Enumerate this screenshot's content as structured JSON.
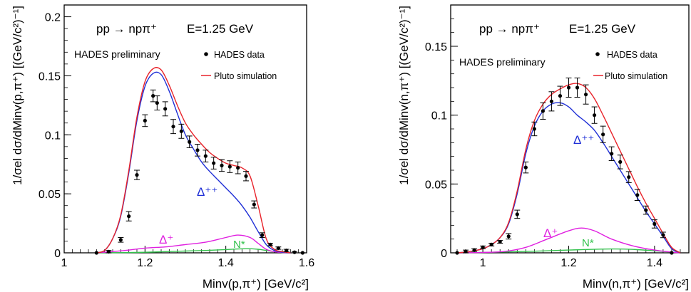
{
  "chart_data": [
    {
      "type": "line",
      "reaction": "pp → npπ⁺",
      "energy_label": "E=1.25 GeV",
      "preliminary_label": "HADES preliminary",
      "legend": {
        "data": "HADES data",
        "sim": "Pluto simulation",
        "placement": "top-right"
      },
      "xlabel": "Minv(p,π⁺) [GeV/c²]",
      "ylabel": "1/σel dσ/dMinv(p,π⁺) [(GeV/c²)⁻¹]",
      "xlim": [
        1.0,
        1.6
      ],
      "ylim": [
        0,
        0.21
      ],
      "xticks": [
        "1",
        "1.2",
        "1.4",
        "1.6"
      ],
      "yticks": [
        "0",
        "0.05",
        "0.1",
        "0.15",
        "0.2"
      ],
      "xtick_values": [
        1.0,
        1.2,
        1.4,
        1.6
      ],
      "ytick_values": [
        0,
        0.05,
        0.1,
        0.15,
        0.2
      ],
      "labels": {
        "delta_pp": "Δ⁺⁺",
        "delta_p": "Δ⁺",
        "nstar": "N*"
      },
      "colors": {
        "total": "#e8232a",
        "delta_pp": "#1f2fd6",
        "delta_p": "#e020e0",
        "nstar": "#33c24d",
        "data": "#000000"
      },
      "data_points": {
        "x": [
          1.08,
          1.11,
          1.14,
          1.16,
          1.18,
          1.2,
          1.22,
          1.23,
          1.25,
          1.27,
          1.29,
          1.31,
          1.33,
          1.35,
          1.37,
          1.39,
          1.41,
          1.43,
          1.45,
          1.47,
          1.49,
          1.51,
          1.53,
          1.55,
          1.57,
          1.59
        ],
        "y": [
          0.0,
          0.001,
          0.011,
          0.031,
          0.066,
          0.112,
          0.133,
          0.127,
          0.122,
          0.107,
          0.103,
          0.094,
          0.087,
          0.082,
          0.076,
          0.074,
          0.073,
          0.072,
          0.065,
          0.041,
          0.015,
          0.007,
          0.004,
          0.002,
          0.0005,
          0.0
        ],
        "err": [
          0.0,
          0.001,
          0.002,
          0.004,
          0.004,
          0.005,
          0.005,
          0.006,
          0.006,
          0.006,
          0.006,
          0.005,
          0.005,
          0.005,
          0.005,
          0.005,
          0.005,
          0.005,
          0.004,
          0.003,
          0.002,
          0.001,
          0.001,
          0.001,
          0.0005,
          0.0
        ]
      },
      "series": [
        {
          "name": "Pluto simulation",
          "key": "total",
          "x": [
            1.08,
            1.1,
            1.12,
            1.14,
            1.16,
            1.18,
            1.2,
            1.22,
            1.24,
            1.26,
            1.28,
            1.3,
            1.32,
            1.34,
            1.36,
            1.38,
            1.4,
            1.42,
            1.44,
            1.46,
            1.48,
            1.5,
            1.52,
            1.54,
            1.56
          ],
          "y": [
            0,
            0.002,
            0.012,
            0.032,
            0.07,
            0.115,
            0.145,
            0.156,
            0.155,
            0.142,
            0.125,
            0.11,
            0.1,
            0.092,
            0.085,
            0.08,
            0.076,
            0.074,
            0.072,
            0.065,
            0.04,
            0.012,
            0.003,
            0.001,
            0
          ]
        },
        {
          "key": "delta_pp",
          "x": [
            1.08,
            1.1,
            1.12,
            1.14,
            1.16,
            1.18,
            1.2,
            1.22,
            1.24,
            1.26,
            1.28,
            1.3,
            1.32,
            1.34,
            1.36,
            1.38,
            1.4,
            1.42,
            1.44,
            1.46,
            1.48,
            1.5,
            1.52,
            1.54,
            1.56
          ],
          "y": [
            0,
            0.002,
            0.012,
            0.031,
            0.068,
            0.112,
            0.141,
            0.152,
            0.151,
            0.137,
            0.118,
            0.1,
            0.088,
            0.077,
            0.069,
            0.062,
            0.055,
            0.048,
            0.04,
            0.03,
            0.018,
            0.007,
            0.002,
            0.0005,
            0
          ]
        },
        {
          "key": "delta_p",
          "x": [
            1.08,
            1.1,
            1.15,
            1.2,
            1.25,
            1.3,
            1.35,
            1.4,
            1.43,
            1.46,
            1.48,
            1.5,
            1.52,
            1.54,
            1.56
          ],
          "y": [
            0,
            0.0005,
            0.002,
            0.004,
            0.005,
            0.007,
            0.009,
            0.013,
            0.015,
            0.013,
            0.008,
            0.003,
            0.001,
            0.0003,
            0
          ]
        },
        {
          "key": "nstar",
          "x": [
            1.08,
            1.15,
            1.2,
            1.25,
            1.3,
            1.35,
            1.4,
            1.45,
            1.48,
            1.5,
            1.52,
            1.54,
            1.56
          ],
          "y": [
            0,
            0.0002,
            0.0005,
            0.001,
            0.0015,
            0.002,
            0.0028,
            0.0035,
            0.003,
            0.002,
            0.001,
            0.0003,
            0
          ]
        }
      ]
    },
    {
      "type": "line",
      "reaction": "pp → npπ⁺",
      "energy_label": "E=1.25 GeV",
      "preliminary_label": "HADES preliminary",
      "legend": {
        "data": "HADES data",
        "sim": "Pluto simulation",
        "placement": "top-right"
      },
      "xlabel": "Minv(n,π⁺) [GeV/c²]",
      "ylabel": "1/σel dσ/dMinv(n,π⁺) [(GeV/c²)⁻¹]",
      "xlim": [
        0.925,
        1.48
      ],
      "ylim": [
        0,
        0.18
      ],
      "xticks": [
        "1",
        "1.2",
        "1.4"
      ],
      "yticks": [
        "0",
        "0.05",
        "0.1",
        "0.15"
      ],
      "xtick_values": [
        1.0,
        1.2,
        1.4
      ],
      "ytick_values": [
        0,
        0.05,
        0.1,
        0.15
      ],
      "labels": {
        "delta_pp": "Δ⁺⁺",
        "delta_p": "Δ⁺",
        "nstar": "N*"
      },
      "colors": {
        "total": "#e8232a",
        "delta_pp": "#1f2fd6",
        "delta_p": "#e020e0",
        "nstar": "#33c24d",
        "data": "#000000"
      },
      "data_points": {
        "x": [
          0.94,
          0.96,
          0.98,
          1.0,
          1.02,
          1.04,
          1.06,
          1.08,
          1.1,
          1.12,
          1.14,
          1.16,
          1.18,
          1.2,
          1.22,
          1.24,
          1.26,
          1.28,
          1.3,
          1.32,
          1.34,
          1.36,
          1.38,
          1.4,
          1.42,
          1.44
        ],
        "y": [
          0.0,
          0.001,
          0.002,
          0.004,
          0.006,
          0.008,
          0.012,
          0.028,
          0.062,
          0.09,
          0.103,
          0.11,
          0.114,
          0.12,
          0.12,
          0.115,
          0.1,
          0.086,
          0.072,
          0.066,
          0.055,
          0.042,
          0.031,
          0.021,
          0.013,
          0.0
        ],
        "err": [
          0.0,
          0.001,
          0.001,
          0.001,
          0.001,
          0.001,
          0.002,
          0.003,
          0.004,
          0.005,
          0.006,
          0.007,
          0.007,
          0.007,
          0.007,
          0.007,
          0.006,
          0.006,
          0.005,
          0.005,
          0.004,
          0.004,
          0.003,
          0.003,
          0.002,
          0.0
        ]
      },
      "series": [
        {
          "name": "Pluto simulation",
          "key": "total",
          "x": [
            0.94,
            0.96,
            0.98,
            1.0,
            1.02,
            1.04,
            1.06,
            1.08,
            1.1,
            1.12,
            1.14,
            1.16,
            1.18,
            1.2,
            1.22,
            1.24,
            1.26,
            1.28,
            1.3,
            1.32,
            1.34,
            1.36,
            1.38,
            1.4,
            1.42,
            1.44,
            1.46
          ],
          "y": [
            0,
            0.0005,
            0.0015,
            0.003,
            0.006,
            0.011,
            0.022,
            0.045,
            0.075,
            0.096,
            0.108,
            0.115,
            0.119,
            0.122,
            0.123,
            0.12,
            0.112,
            0.1,
            0.087,
            0.074,
            0.061,
            0.048,
            0.036,
            0.025,
            0.014,
            0.004,
            0
          ]
        },
        {
          "key": "delta_pp",
          "x": [
            0.94,
            0.96,
            0.98,
            1.0,
            1.02,
            1.04,
            1.06,
            1.08,
            1.1,
            1.12,
            1.14,
            1.16,
            1.18,
            1.2,
            1.22,
            1.24,
            1.26,
            1.28,
            1.3,
            1.32,
            1.34,
            1.36,
            1.38,
            1.4,
            1.42,
            1.44,
            1.46
          ],
          "y": [
            0,
            0.0005,
            0.0015,
            0.003,
            0.006,
            0.011,
            0.021,
            0.043,
            0.072,
            0.092,
            0.103,
            0.108,
            0.109,
            0.106,
            0.1,
            0.095,
            0.089,
            0.08,
            0.07,
            0.06,
            0.05,
            0.04,
            0.03,
            0.021,
            0.012,
            0.003,
            0
          ]
        },
        {
          "key": "delta_p",
          "x": [
            0.94,
            1.0,
            1.05,
            1.1,
            1.15,
            1.2,
            1.23,
            1.26,
            1.3,
            1.35,
            1.4,
            1.44,
            1.46
          ],
          "y": [
            0,
            0.0003,
            0.001,
            0.004,
            0.01,
            0.016,
            0.018,
            0.016,
            0.01,
            0.005,
            0.002,
            0.0005,
            0
          ]
        },
        {
          "key": "nstar",
          "x": [
            0.94,
            1.0,
            1.1,
            1.2,
            1.25,
            1.3,
            1.35,
            1.4,
            1.44,
            1.46
          ],
          "y": [
            0,
            0.0003,
            0.001,
            0.002,
            0.0025,
            0.0028,
            0.0025,
            0.0015,
            0.0005,
            0
          ]
        }
      ]
    }
  ]
}
